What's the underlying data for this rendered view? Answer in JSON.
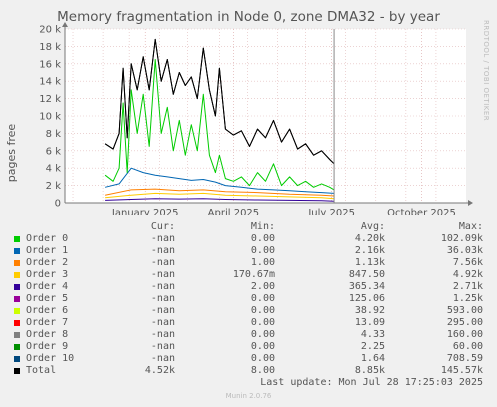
{
  "title": "Memory fragmentation in Node 0, zone DMA32 - by year",
  "rrdtool_label": "RRDTOOL / TOBI OETIKER",
  "footer": {
    "last_update": "Last update: Mon Jul 28 17:25:03 2025",
    "munin": "Munin 2.0.76"
  },
  "legend_headers": {
    "cur": "Cur:",
    "min": "Min:",
    "avg": "Avg:",
    "max": "Max:"
  },
  "legend": [
    {
      "name": "Order 0",
      "color": "#00cc00",
      "cur": "-nan",
      "min": "0.00",
      "avg": "4.20k",
      "max": "102.09k"
    },
    {
      "name": "Order 1",
      "color": "#0066b3",
      "cur": "-nan",
      "min": "0.00",
      "avg": "2.16k",
      "max": "36.03k"
    },
    {
      "name": "Order 2",
      "color": "#ff8000",
      "cur": "-nan",
      "min": "1.00",
      "avg": "1.13k",
      "max": "7.56k"
    },
    {
      "name": "Order 3",
      "color": "#ffcc00",
      "cur": "-nan",
      "min": "170.67m",
      "avg": "847.50",
      "max": "4.92k"
    },
    {
      "name": "Order 4",
      "color": "#330099",
      "cur": "-nan",
      "min": "2.00",
      "avg": "365.34",
      "max": "2.71k"
    },
    {
      "name": "Order 5",
      "color": "#990099",
      "cur": "-nan",
      "min": "0.00",
      "avg": "125.06",
      "max": "1.25k"
    },
    {
      "name": "Order 6",
      "color": "#ccff00",
      "cur": "-nan",
      "min": "0.00",
      "avg": "38.92",
      "max": "593.00"
    },
    {
      "name": "Order 7",
      "color": "#ff0000",
      "cur": "-nan",
      "min": "0.00",
      "avg": "13.09",
      "max": "295.00"
    },
    {
      "name": "Order 8",
      "color": "#808080",
      "cur": "-nan",
      "min": "0.00",
      "avg": "4.33",
      "max": "160.00"
    },
    {
      "name": "Order 9",
      "color": "#008f00",
      "cur": "-nan",
      "min": "0.00",
      "avg": "2.25",
      "max": "60.00"
    },
    {
      "name": "Order 10",
      "color": "#00487d",
      "cur": "-nan",
      "min": "0.00",
      "avg": "1.64",
      "max": "708.59"
    },
    {
      "name": "Total",
      "color": "#000000",
      "cur": "4.52k",
      "min": "8.00",
      "avg": "8.85k",
      "max": "145.57k"
    }
  ],
  "chart_data": {
    "type": "line",
    "title": "Memory fragmentation in Node 0, zone DMA32 - by year",
    "ylabel": "pages free",
    "ylim": [
      0,
      20000
    ],
    "y_ticks": [
      0,
      2000,
      4000,
      6000,
      8000,
      10000,
      12000,
      14000,
      16000,
      18000,
      20000
    ],
    "y_tick_labels": [
      "0",
      "2 k",
      "4 k",
      "6 k",
      "8 k",
      "10 k",
      "12 k",
      "14 k",
      "16 k",
      "18 k",
      "20 k"
    ],
    "xlim": [
      0,
      1
    ],
    "x_ticks": [
      0.2,
      0.42,
      0.665,
      0.889
    ],
    "x_tick_labels": [
      "January 2025",
      "April 2025",
      "July 2025",
      "October 2025"
    ],
    "x_minor_ticks": [
      0.02,
      0.095,
      0.16,
      0.236,
      0.305,
      0.385,
      0.455,
      0.53,
      0.6,
      0.7,
      0.775,
      0.85,
      0.925
    ],
    "current_marker_x": 0.671,
    "grid": true,
    "series": [
      {
        "name": "Total",
        "color": "#000000",
        "x": [
          0.1,
          0.12,
          0.135,
          0.145,
          0.155,
          0.165,
          0.18,
          0.195,
          0.21,
          0.225,
          0.24,
          0.255,
          0.27,
          0.285,
          0.3,
          0.315,
          0.33,
          0.345,
          0.36,
          0.375,
          0.385,
          0.4,
          0.42,
          0.44,
          0.46,
          0.48,
          0.5,
          0.52,
          0.54,
          0.56,
          0.58,
          0.6,
          0.62,
          0.64,
          0.66,
          0.671
        ],
        "values": [
          6800,
          6200,
          8000,
          15500,
          7500,
          16000,
          13000,
          16800,
          13000,
          18800,
          14000,
          16500,
          12500,
          15000,
          13500,
          14500,
          12000,
          17800,
          13000,
          10000,
          15500,
          8500,
          7800,
          8300,
          6500,
          8500,
          7500,
          9500,
          7000,
          8500,
          6200,
          6800,
          5500,
          6000,
          5000,
          4500
        ]
      },
      {
        "name": "Order 0",
        "color": "#00cc00",
        "x": [
          0.1,
          0.12,
          0.135,
          0.145,
          0.155,
          0.165,
          0.18,
          0.195,
          0.21,
          0.225,
          0.24,
          0.255,
          0.27,
          0.285,
          0.3,
          0.315,
          0.33,
          0.345,
          0.36,
          0.375,
          0.385,
          0.4,
          0.42,
          0.44,
          0.46,
          0.48,
          0.5,
          0.52,
          0.54,
          0.56,
          0.58,
          0.6,
          0.62,
          0.64,
          0.66,
          0.671
        ],
        "values": [
          3200,
          2500,
          4000,
          11500,
          3500,
          13000,
          8000,
          12500,
          6500,
          16500,
          8000,
          11000,
          6000,
          9500,
          5500,
          9000,
          6000,
          12500,
          5500,
          3500,
          5500,
          2800,
          2500,
          3000,
          2000,
          3500,
          2500,
          4500,
          2000,
          3000,
          2000,
          2500,
          1800,
          2200,
          1800,
          1500
        ]
      },
      {
        "name": "Order 1",
        "color": "#0066b3",
        "x": [
          0.1,
          0.135,
          0.165,
          0.195,
          0.225,
          0.255,
          0.285,
          0.315,
          0.345,
          0.375,
          0.4,
          0.44,
          0.48,
          0.52,
          0.56,
          0.6,
          0.64,
          0.671
        ],
        "values": [
          1800,
          2200,
          4000,
          3500,
          3200,
          3000,
          2800,
          2600,
          2700,
          2400,
          2000,
          1800,
          1600,
          1500,
          1400,
          1300,
          1200,
          1100
        ]
      },
      {
        "name": "Order 2",
        "color": "#ff8000",
        "x": [
          0.1,
          0.165,
          0.225,
          0.285,
          0.345,
          0.4,
          0.48,
          0.56,
          0.64,
          0.671
        ],
        "values": [
          900,
          1500,
          1600,
          1400,
          1500,
          1300,
          1200,
          1000,
          900,
          800
        ]
      },
      {
        "name": "Order 3",
        "color": "#ffcc00",
        "x": [
          0.1,
          0.165,
          0.225,
          0.285,
          0.345,
          0.4,
          0.48,
          0.56,
          0.64,
          0.671
        ],
        "values": [
          600,
          900,
          1100,
          1000,
          1100,
          900,
          800,
          700,
          600,
          500
        ]
      },
      {
        "name": "Order 4",
        "color": "#330099",
        "x": [
          0.1,
          0.165,
          0.225,
          0.285,
          0.345,
          0.4,
          0.48,
          0.56,
          0.64,
          0.671
        ],
        "values": [
          300,
          400,
          500,
          450,
          500,
          400,
          350,
          300,
          250,
          200
        ]
      }
    ]
  }
}
